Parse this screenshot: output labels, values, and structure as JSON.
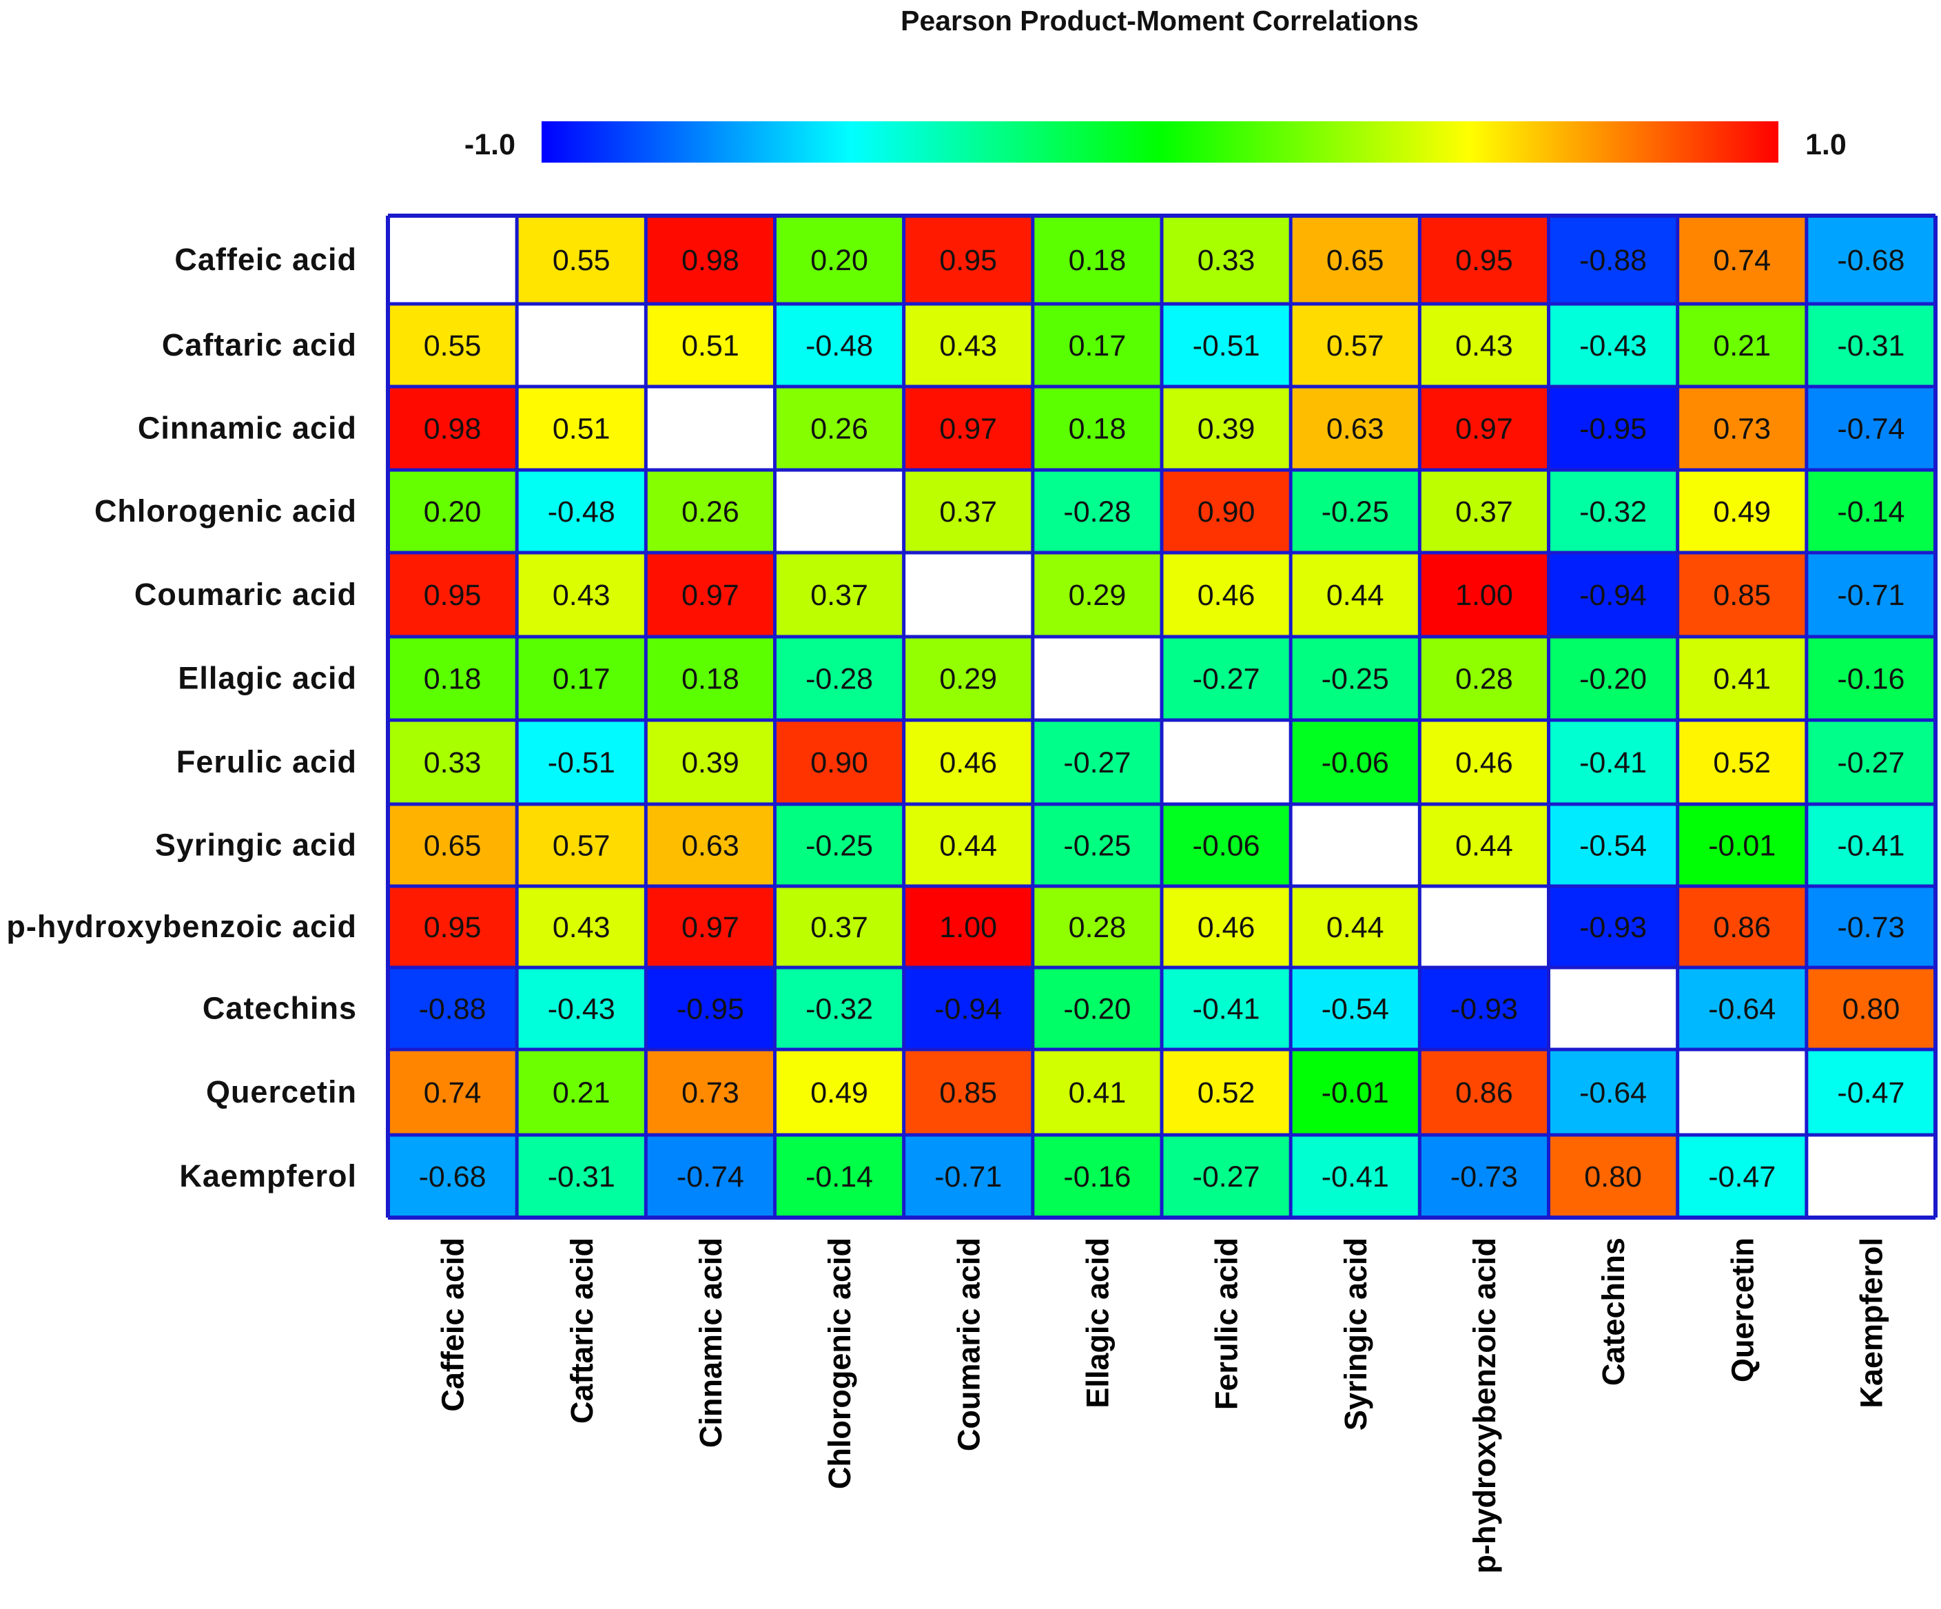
{
  "chart_data": {
    "type": "heatmap",
    "title": "Pearson Product-Moment Correlations",
    "colorbar": {
      "min_label": "-1.0",
      "max_label": "1.0",
      "range": [
        -1.0,
        1.0
      ],
      "colors": [
        "#0000ff",
        "#00ffff",
        "#00ff00",
        "#ffff00",
        "#ff0000"
      ]
    },
    "row_labels": [
      "Caffeic acid",
      "Caftaric acid",
      "Cinnamic acid",
      "Chlorogenic acid",
      "Coumaric acid",
      "Ellagic acid",
      "Ferulic acid",
      "Syringic acid",
      "p-hydroxybenzoic acid",
      "Catechins",
      "Quercetin",
      "Kaempferol"
    ],
    "col_labels": [
      "Caffeic acid",
      "Caftaric acid",
      "Cinnamic acid",
      "Chlorogenic acid",
      "Coumaric acid",
      "Ellagic acid",
      "Ferulic acid",
      "Syringic acid",
      "p-hydroxybenzoic acid",
      "Catechins",
      "Quercetin",
      "Kaempferol"
    ],
    "matrix": [
      [
        null,
        "0.55",
        "0.98",
        "0.20",
        "0.95",
        "0.18",
        "0.33",
        "0.65",
        "0.95",
        "-0.88",
        "0.74",
        "-0.68"
      ],
      [
        "0.55",
        null,
        "0.51",
        "-0.48",
        "0.43",
        "0.17",
        "-0.51",
        "0.57",
        "0.43",
        "-0.43",
        "0.21",
        "-0.31"
      ],
      [
        "0.98",
        "0.51",
        null,
        "0.26",
        "0.97",
        "0.18",
        "0.39",
        "0.63",
        "0.97",
        "-0.95",
        "0.73",
        "-0.74"
      ],
      [
        "0.20",
        "-0.48",
        "0.26",
        null,
        "0.37",
        "-0.28",
        "0.90",
        "-0.25",
        "0.37",
        "-0.32",
        "0.49",
        "-0.14"
      ],
      [
        "0.95",
        "0.43",
        "0.97",
        "0.37",
        null,
        "0.29",
        "0.46",
        "0.44",
        "1.00",
        "-0.94",
        "0.85",
        "-0.71"
      ],
      [
        "0.18",
        "0.17",
        "0.18",
        "-0.28",
        "0.29",
        null,
        "-0.27",
        "-0.25",
        "0.28",
        "-0.20",
        "0.41",
        "-0.16"
      ],
      [
        "0.33",
        "-0.51",
        "0.39",
        "0.90",
        "0.46",
        "-0.27",
        null,
        "-0.06",
        "0.46",
        "-0.41",
        "0.52",
        "-0.27"
      ],
      [
        "0.65",
        "0.57",
        "0.63",
        "-0.25",
        "0.44",
        "-0.25",
        "-0.06",
        null,
        "0.44",
        "-0.54",
        "-0.01",
        "-0.41"
      ],
      [
        "0.95",
        "0.43",
        "0.97",
        "0.37",
        "1.00",
        "0.28",
        "0.46",
        "0.44",
        null,
        "-0.93",
        "0.86",
        "-0.73"
      ],
      [
        "-0.88",
        "-0.43",
        "-0.95",
        "-0.32",
        "-0.94",
        "-0.20",
        "-0.41",
        "-0.54",
        "-0.93",
        null,
        "-0.64",
        "0.80"
      ],
      [
        "0.74",
        "0.21",
        "0.73",
        "0.49",
        "0.85",
        "0.41",
        "0.52",
        "-0.01",
        "0.86",
        "-0.64",
        null,
        "-0.47"
      ],
      [
        "-0.68",
        "-0.31",
        "-0.74",
        "-0.14",
        "-0.71",
        "-0.16",
        "-0.27",
        "-0.41",
        "-0.73",
        "0.80",
        "-0.47",
        null
      ]
    ],
    "diagonal": "blank",
    "grid_color": "#1a1acc"
  }
}
